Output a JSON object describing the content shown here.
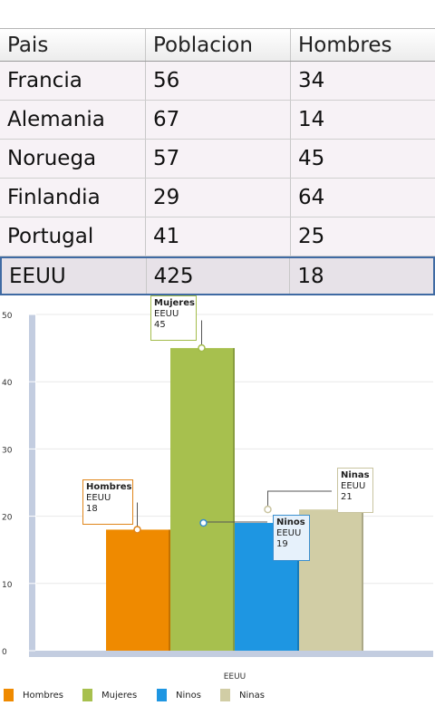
{
  "table": {
    "headers": [
      "Pais",
      "Poblacion",
      "Hombres"
    ],
    "rows": [
      [
        "Francia",
        "56",
        "34"
      ],
      [
        "Alemania",
        "67",
        "14"
      ],
      [
        "Noruega",
        "57",
        "45"
      ],
      [
        "Finlandia",
        "29",
        "64"
      ],
      [
        "Portugal",
        "41",
        "25"
      ],
      [
        "EEUU",
        "425",
        "18"
      ]
    ],
    "selected_row": 5
  },
  "chart_data": {
    "type": "bar",
    "categories": [
      "EEUU"
    ],
    "series": [
      {
        "name": "Hombres",
        "values": [
          18
        ],
        "color": "#ef8a00"
      },
      {
        "name": "Mujeres",
        "values": [
          45
        ],
        "color": "#a7c04e"
      },
      {
        "name": "Ninos",
        "values": [
          19
        ],
        "color": "#1e96e2"
      },
      {
        "name": "Ninas",
        "values": [
          21
        ],
        "color": "#d1cda5"
      }
    ],
    "ylim": [
      0,
      50
    ],
    "yticks": [
      "0",
      "10",
      "20",
      "30",
      "40",
      "50"
    ],
    "grid": true,
    "legend": "bottom",
    "tooltips": [
      {
        "series": "Hombres",
        "category": "EEUU",
        "value": "18",
        "border": "#e0851a"
      },
      {
        "series": "Mujeres",
        "category": "EEUU",
        "value": "45",
        "border": "#a3bc4b"
      },
      {
        "series": "Ninos",
        "category": "EEUU",
        "value": "19",
        "border": "#3a8fd0"
      },
      {
        "series": "Ninas",
        "category": "EEUU",
        "value": "21",
        "border": "#c9c4a0"
      }
    ]
  }
}
